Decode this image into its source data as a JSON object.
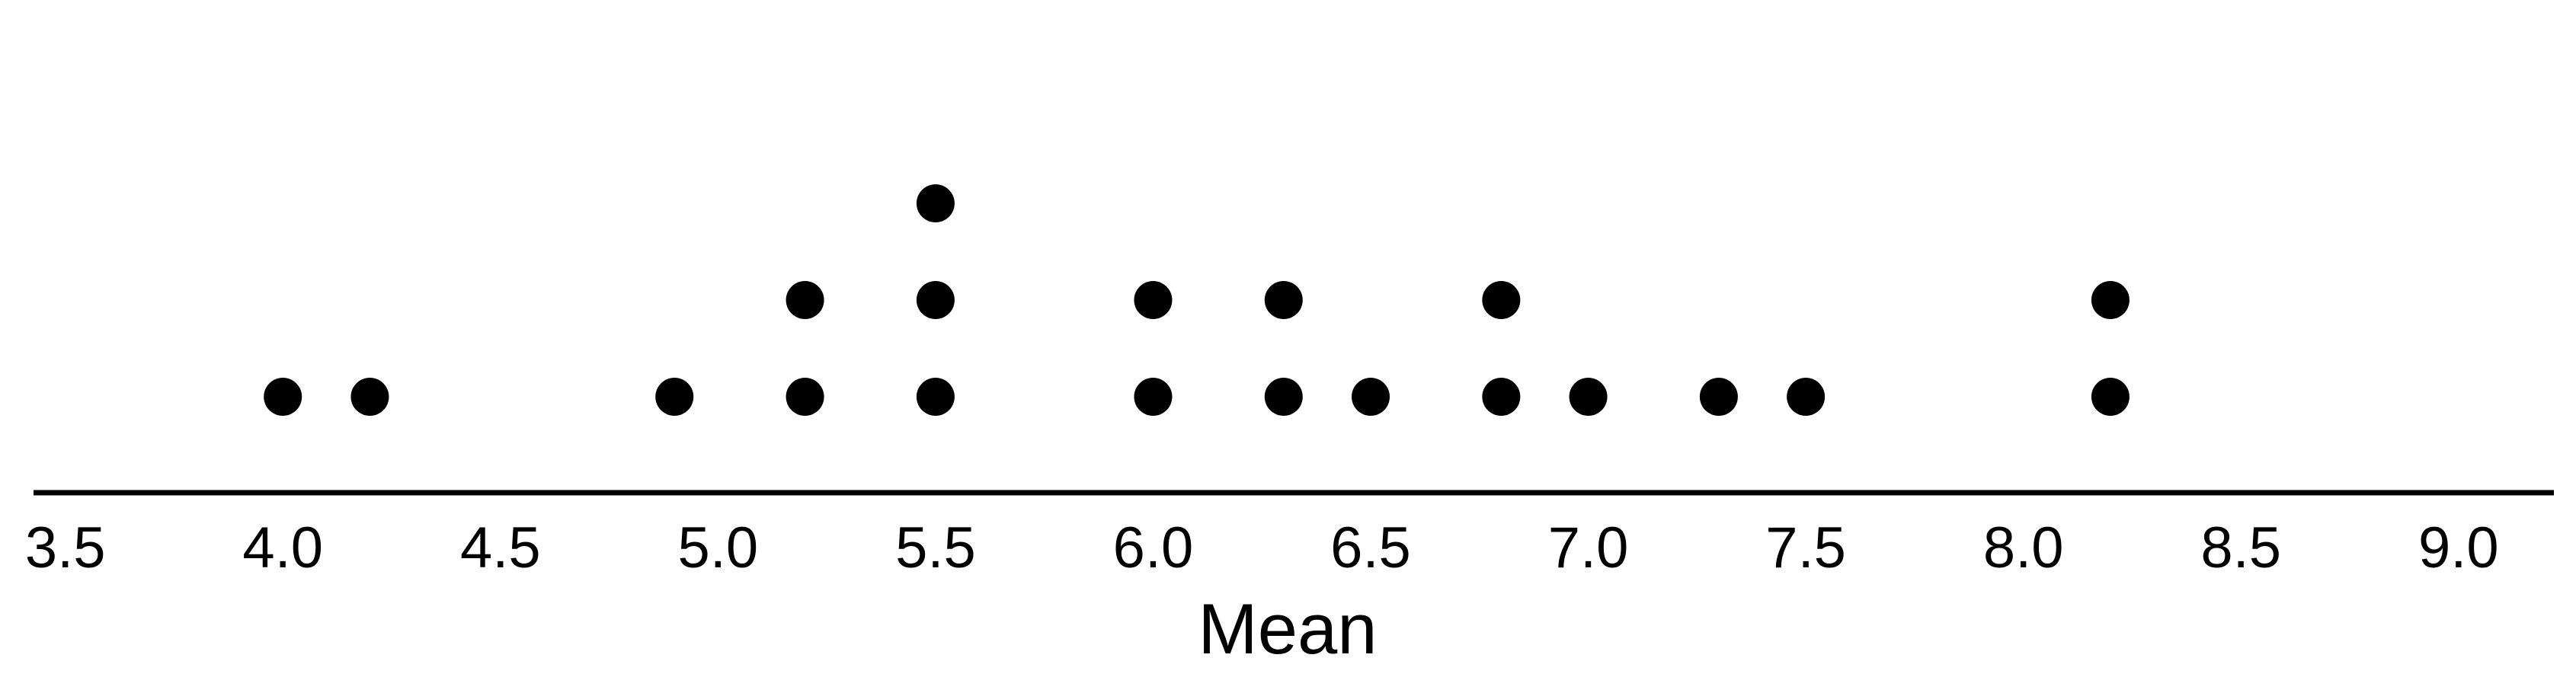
{
  "chart_data": {
    "type": "dot",
    "xlabel": "Mean",
    "xlim": [
      3.35,
      9.27
    ],
    "x_ticks": [
      "3.5",
      "4.0",
      "4.5",
      "5.0",
      "5.5",
      "6.0",
      "6.5",
      "7.0",
      "7.5",
      "8.0",
      "8.5",
      "9.0"
    ],
    "points": [
      {
        "x": 4.0,
        "count": 1
      },
      {
        "x": 4.2,
        "count": 1
      },
      {
        "x": 4.9,
        "count": 1
      },
      {
        "x": 5.2,
        "count": 2
      },
      {
        "x": 5.5,
        "count": 3
      },
      {
        "x": 6.0,
        "count": 2
      },
      {
        "x": 6.3,
        "count": 2
      },
      {
        "x": 6.5,
        "count": 1
      },
      {
        "x": 6.8,
        "count": 2
      },
      {
        "x": 7.0,
        "count": 1
      },
      {
        "x": 7.3,
        "count": 1
      },
      {
        "x": 7.5,
        "count": 1
      },
      {
        "x": 8.2,
        "count": 2
      }
    ],
    "grid": false,
    "dot_color": "#000000",
    "axis_color": "#000000",
    "background": "#ffffff"
  }
}
